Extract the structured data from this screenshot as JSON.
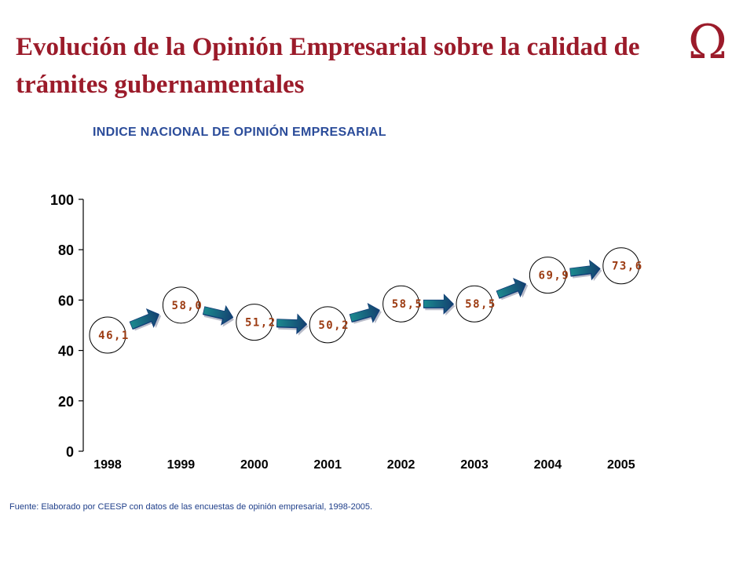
{
  "header": {
    "title": "Evolución de la Opinión Empresarial sobre la calidad de trámites gubernamentales",
    "logo_symbol": "Ω"
  },
  "chart_data": {
    "type": "line",
    "title": "INDICE NACIONAL DE OPINIÓN EMPRESARIAL",
    "xlabel": "",
    "ylabel": "",
    "categories": [
      "1998",
      "1999",
      "2000",
      "2001",
      "2002",
      "2003",
      "2004",
      "2005"
    ],
    "values": [
      46.1,
      58.0,
      51.2,
      50.2,
      58.5,
      58.5,
      69.9,
      73.6
    ],
    "data_labels": [
      "46,1",
      "58,0",
      "51,2",
      "50,2",
      "58,5",
      "58,5",
      "69,9",
      "73,6"
    ],
    "ylim": [
      0,
      100
    ],
    "yticks": [
      0,
      20,
      40,
      60,
      80,
      100
    ],
    "grid": false,
    "markers": "circle",
    "connectors": "arrow",
    "colors": {
      "label": "#9c3b12",
      "arrow_face": "#1b7f86",
      "arrow_dark": "#123f78",
      "arrow_shadow": "#b9bcc9"
    }
  },
  "footer": {
    "source": "Fuente: Elaborado por CEESP con datos de las encuestas de opinión empresarial, 1998-2005."
  }
}
